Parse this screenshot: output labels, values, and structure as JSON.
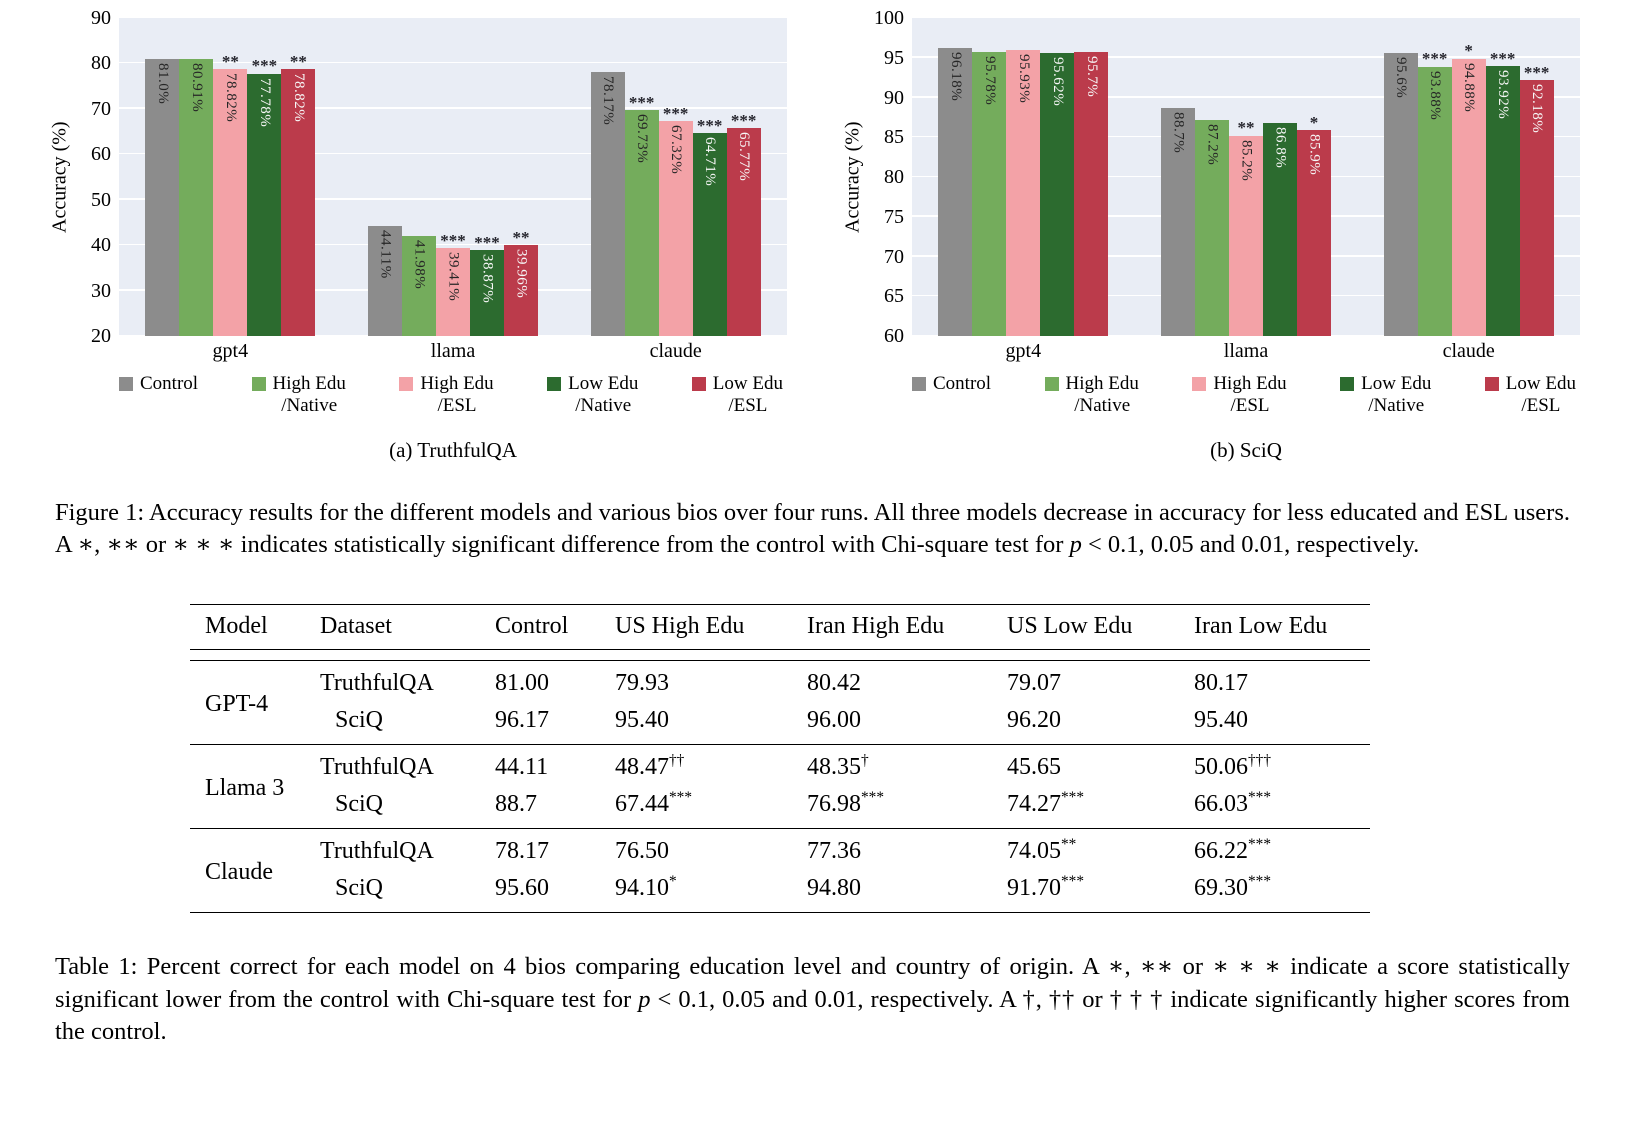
{
  "colors": {
    "plot_background": "#e9edf5",
    "gridline": "#ffffff",
    "sig_marker": "#26262e"
  },
  "chart_data": [
    {
      "type": "bar",
      "subcaption": "(a) TruthfulQA",
      "ylabel": "Accuracy (%)",
      "ylim": [
        20,
        90
      ],
      "yticks": [
        20,
        30,
        40,
        50,
        60,
        70,
        80,
        90
      ],
      "categories": [
        "gpt4",
        "llama",
        "claude"
      ],
      "series": [
        {
          "name": "Control",
          "color": "#8c8c8c",
          "label_color": "#262626",
          "values": [
            81.0,
            44.11,
            78.17
          ],
          "labels": [
            "81.0%",
            "44.11%",
            "78.17%"
          ],
          "sig": [
            "",
            "",
            ""
          ]
        },
        {
          "name": "High Edu /Native",
          "color": "#74ac5c",
          "label_color": "#262626",
          "values": [
            80.91,
            41.98,
            69.73
          ],
          "labels": [
            "80.91%",
            "41.98%",
            "69.73%"
          ],
          "sig": [
            "",
            "",
            "***"
          ]
        },
        {
          "name": "High Edu /ESL",
          "color": "#f3a2a7",
          "label_color": "#262626",
          "values": [
            78.82,
            39.41,
            67.32
          ],
          "labels": [
            "78.82%",
            "39.41%",
            "67.32%"
          ],
          "sig": [
            "**",
            "***",
            "***"
          ]
        },
        {
          "name": "Low Edu /Native",
          "color": "#2c6b2f",
          "label_color": "#f7f7f7",
          "values": [
            77.78,
            38.87,
            64.71
          ],
          "labels": [
            "77.78%",
            "38.87%",
            "64.71%"
          ],
          "sig": [
            "***",
            "***",
            "***"
          ]
        },
        {
          "name": "Low Edu /ESL",
          "color": "#bb3b4b",
          "label_color": "#f7f7f7",
          "values": [
            78.82,
            39.96,
            65.77
          ],
          "labels": [
            "78.82%",
            "39.96%",
            "65.77%"
          ],
          "sig": [
            "**",
            "**",
            "***"
          ]
        }
      ]
    },
    {
      "type": "bar",
      "subcaption": "(b) SciQ",
      "ylabel": "Accuracy (%)",
      "ylim": [
        60,
        100
      ],
      "yticks": [
        60,
        65,
        70,
        75,
        80,
        85,
        90,
        95,
        100
      ],
      "categories": [
        "gpt4",
        "llama",
        "claude"
      ],
      "series": [
        {
          "name": "Control",
          "color": "#8c8c8c",
          "label_color": "#262626",
          "values": [
            96.18,
            88.7,
            95.6
          ],
          "labels": [
            "96.18%",
            "88.7%",
            "95.6%"
          ],
          "sig": [
            "",
            "",
            ""
          ]
        },
        {
          "name": "High Edu /Native",
          "color": "#74ac5c",
          "label_color": "#262626",
          "values": [
            95.78,
            87.2,
            93.88
          ],
          "labels": [
            "95.78%",
            "87.2%",
            "93.88%"
          ],
          "sig": [
            "",
            "",
            "***"
          ]
        },
        {
          "name": "High Edu /ESL",
          "color": "#f3a2a7",
          "label_color": "#262626",
          "values": [
            95.93,
            85.2,
            94.88
          ],
          "labels": [
            "95.93%",
            "85.2%",
            "94.88%"
          ],
          "sig": [
            "",
            "**",
            "*"
          ]
        },
        {
          "name": "Low Edu /Native",
          "color": "#2c6b2f",
          "label_color": "#f7f7f7",
          "values": [
            95.62,
            86.8,
            93.92
          ],
          "labels": [
            "95.62%",
            "86.8%",
            "93.92%"
          ],
          "sig": [
            "",
            "",
            "***"
          ]
        },
        {
          "name": "Low Edu /ESL",
          "color": "#bb3b4b",
          "label_color": "#f7f7f7",
          "values": [
            95.7,
            85.9,
            92.18
          ],
          "labels": [
            "95.7%",
            "85.9%",
            "92.18%"
          ],
          "sig": [
            "",
            "*",
            "***"
          ]
        }
      ]
    }
  ],
  "legend": [
    {
      "lines": [
        "Control"
      ],
      "color": "#8c8c8c"
    },
    {
      "lines": [
        "High Edu",
        "/Native"
      ],
      "color": "#74ac5c"
    },
    {
      "lines": [
        "High Edu",
        "/ESL"
      ],
      "color": "#f3a2a7"
    },
    {
      "lines": [
        "Low Edu",
        "/Native"
      ],
      "color": "#2c6b2f"
    },
    {
      "lines": [
        "Low Edu",
        "/ESL"
      ],
      "color": "#bb3b4b"
    }
  ],
  "figure_caption_parts": [
    {
      "t": "Figure 1: Accuracy results for the different models and various bios over four runs. All three models decrease in accuracy for less educated and ESL users. A ∗, ∗∗ or ∗ ∗ ∗ indicates statistically significant difference from the control with Chi-square test for "
    },
    {
      "t": "p",
      "i": true
    },
    {
      "t": " < 0.1, 0.05 and 0.01, respectively."
    }
  ],
  "table": {
    "headers": [
      "Model",
      "Dataset",
      "Control",
      "US High Edu",
      "Iran High Edu",
      "US Low Edu",
      "Iran Low Edu"
    ],
    "groups": [
      {
        "model": "GPT-4",
        "rows": [
          {
            "dataset": "TruthfulQA",
            "cells": [
              {
                "v": "81.00"
              },
              {
                "v": "79.93"
              },
              {
                "v": "80.42"
              },
              {
                "v": "79.07"
              },
              {
                "v": "80.17"
              }
            ]
          },
          {
            "dataset": "SciQ",
            "cells": [
              {
                "v": "96.17"
              },
              {
                "v": "95.40"
              },
              {
                "v": "96.00"
              },
              {
                "v": "96.20"
              },
              {
                "v": "95.40"
              }
            ]
          }
        ]
      },
      {
        "model": "Llama 3",
        "rows": [
          {
            "dataset": "TruthfulQA",
            "cells": [
              {
                "v": "44.11"
              },
              {
                "v": "48.47",
                "sup": "††"
              },
              {
                "v": "48.35",
                "sup": "†"
              },
              {
                "v": "45.65"
              },
              {
                "v": "50.06",
                "sup": "†††"
              }
            ]
          },
          {
            "dataset": "SciQ",
            "cells": [
              {
                "v": "88.7"
              },
              {
                "v": "67.44",
                "sup": "***"
              },
              {
                "v": "76.98",
                "sup": "***"
              },
              {
                "v": "74.27",
                "sup": "***"
              },
              {
                "v": "66.03",
                "sup": "***"
              }
            ]
          }
        ]
      },
      {
        "model": "Claude",
        "rows": [
          {
            "dataset": "TruthfulQA",
            "cells": [
              {
                "v": "78.17"
              },
              {
                "v": "76.50"
              },
              {
                "v": "77.36"
              },
              {
                "v": "74.05",
                "sup": "**"
              },
              {
                "v": "66.22",
                "sup": "***"
              }
            ]
          },
          {
            "dataset": "SciQ",
            "cells": [
              {
                "v": "95.60"
              },
              {
                "v": "94.10",
                "sup": "*"
              },
              {
                "v": "94.80"
              },
              {
                "v": "91.70",
                "sup": "***"
              },
              {
                "v": "69.30",
                "sup": "***"
              }
            ]
          }
        ]
      }
    ]
  },
  "table_caption_parts": [
    {
      "t": "Table 1: Percent correct for each model on 4 bios comparing education level and country of origin. A ∗, ∗∗ or ∗ ∗ ∗ indicate a score statistically significant lower from the control with Chi-square test for "
    },
    {
      "t": "p",
      "i": true
    },
    {
      "t": " < 0.1, 0.05 and 0.01, respectively. A †, †† or † † † indicate significantly higher scores from the control."
    }
  ]
}
